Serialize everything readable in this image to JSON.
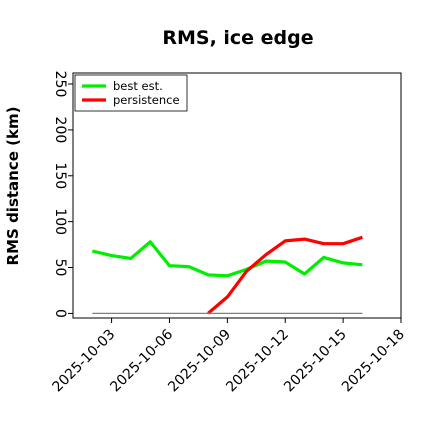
{
  "chart_data": {
    "type": "line",
    "title": "RMS, ice edge",
    "xlabel": "",
    "ylabel": "RMS distance (km)",
    "x": [
      "2025-10-02",
      "2025-10-03",
      "2025-10-04",
      "2025-10-05",
      "2025-10-06",
      "2025-10-07",
      "2025-10-08",
      "2025-10-09",
      "2025-10-10",
      "2025-10-11",
      "2025-10-12",
      "2025-10-13",
      "2025-10-14",
      "2025-10-15",
      "2025-10-16"
    ],
    "xlim": [
      "2025-10-01",
      "2025-10-18"
    ],
    "ylim": [
      -5,
      262
    ],
    "xticks": [
      "2025-10-03",
      "2025-10-06",
      "2025-10-09",
      "2025-10-12",
      "2025-10-15",
      "2025-10-18"
    ],
    "yticks": [
      0,
      50,
      100,
      150,
      200,
      250
    ],
    "grid": false,
    "legend_position": "top-left",
    "series": [
      {
        "name": "best est.",
        "color": "#00ee00",
        "x": [
          "2025-10-02",
          "2025-10-03",
          "2025-10-04",
          "2025-10-05",
          "2025-10-06",
          "2025-10-07",
          "2025-10-08",
          "2025-10-09",
          "2025-10-10",
          "2025-10-11",
          "2025-10-12",
          "2025-10-13",
          "2025-10-14",
          "2025-10-15",
          "2025-10-16"
        ],
        "values": [
          68,
          63,
          60,
          78,
          52,
          51,
          42,
          41,
          48,
          57,
          56,
          43,
          61,
          55,
          53
        ]
      },
      {
        "name": "persistence",
        "color": "#ff0000",
        "x": [
          "2025-10-08",
          "2025-10-09",
          "2025-10-10",
          "2025-10-11",
          "2025-10-12",
          "2025-10-13",
          "2025-10-14",
          "2025-10-15",
          "2025-10-16"
        ],
        "values": [
          0,
          18,
          46,
          64,
          79,
          81,
          76,
          76,
          83
        ]
      },
      {
        "name": "",
        "color": "#808080",
        "x": [
          "2025-10-02",
          "2025-10-16"
        ],
        "values": [
          0,
          0
        ]
      }
    ]
  }
}
